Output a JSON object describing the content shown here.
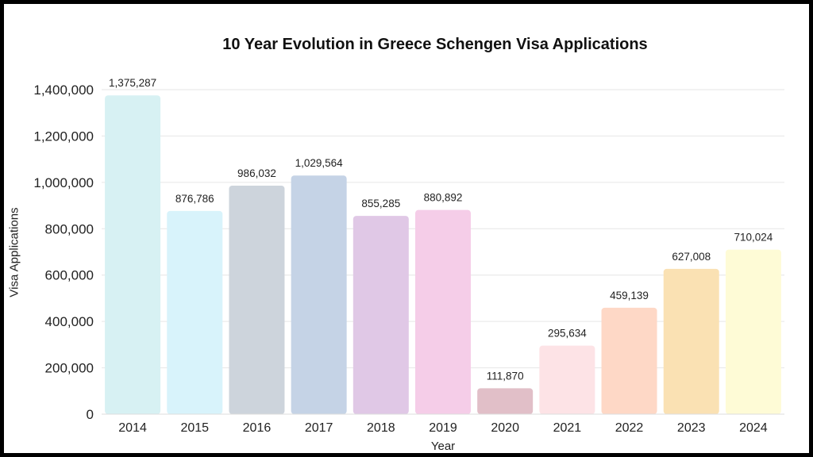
{
  "chart_data": {
    "type": "bar",
    "title": "10 Year Evolution in Greece Schengen Visa Applications",
    "xlabel": "Year",
    "ylabel": "Visa Applications",
    "categories": [
      "2014",
      "2015",
      "2016",
      "2017",
      "2018",
      "2019",
      "2020",
      "2021",
      "2022",
      "2023",
      "2024"
    ],
    "values": [
      1375287,
      876786,
      986032,
      1029564,
      855285,
      880892,
      111870,
      295634,
      459139,
      627008,
      710024
    ],
    "data_labels": [
      "1,375,287",
      "876,786",
      "986,032",
      "1,029,564",
      "855,285",
      "880,892",
      "111,870",
      "295,634",
      "459,139",
      "627,008",
      "710,024"
    ],
    "colors": [
      "#d7f1f3",
      "#d8f3fb",
      "#cdd4dc",
      "#c5d3e6",
      "#e0c8e6",
      "#f5cde8",
      "#e1bfc8",
      "#fde3e6",
      "#fed8c6",
      "#fae1b3",
      "#fefbd6"
    ],
    "ylim": [
      0,
      1400000
    ],
    "yticks": [
      0,
      200000,
      400000,
      600000,
      800000,
      1000000,
      1200000,
      1400000
    ],
    "ytick_labels": [
      "0",
      "200,000",
      "400,000",
      "600,000",
      "800,000",
      "1,000,000",
      "1,200,000",
      "1,400,000"
    ],
    "grid": true,
    "legend": "none"
  }
}
